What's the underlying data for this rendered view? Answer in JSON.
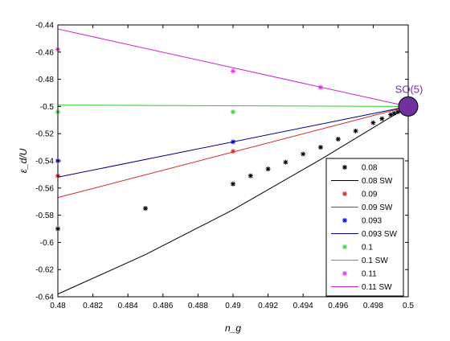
{
  "chart_data": {
    "type": "scatter",
    "title": "",
    "xlabel": "n_g",
    "ylabel": "ε_d/U",
    "xlim": [
      0.48,
      0.5
    ],
    "ylim": [
      -0.64,
      -0.44
    ],
    "xticks": [
      0.48,
      0.482,
      0.484,
      0.486,
      0.488,
      0.49,
      0.492,
      0.494,
      0.496,
      0.498,
      0.5
    ],
    "xtick_labels": [
      "0.48",
      "0.482",
      "0.484",
      "0.486",
      "0.488",
      "0.49",
      "0.492",
      "0.494",
      "0.496",
      "0.498",
      "0.5"
    ],
    "yticks": [
      -0.64,
      -0.62,
      -0.6,
      -0.58,
      -0.56,
      -0.54,
      -0.52,
      -0.5,
      -0.48,
      -0.46,
      -0.44
    ],
    "ytick_labels": [
      "-0.64",
      "-0.62",
      "-0.6",
      "-0.58",
      "-0.56",
      "-0.54",
      "-0.52",
      "-0.5",
      "-0.48",
      "-0.46",
      "-0.44"
    ],
    "grid": false,
    "legend_position": "bottom-right",
    "annotation": {
      "text": "SO(5)",
      "x": 0.5,
      "y": -0.5,
      "marker_color": "#7030a0"
    },
    "series": [
      {
        "name": "0.08",
        "kind": "markers",
        "marker": "*",
        "color": "#000000",
        "x": [
          0.48,
          0.485,
          0.49,
          0.491,
          0.492,
          0.493,
          0.494,
          0.495,
          0.496,
          0.497,
          0.498,
          0.4985,
          0.499,
          0.4992,
          0.4994,
          0.4996,
          0.4998,
          0.5
        ],
        "y": [
          -0.59,
          -0.575,
          -0.557,
          -0.551,
          -0.546,
          -0.541,
          -0.535,
          -0.53,
          -0.524,
          -0.518,
          -0.512,
          -0.509,
          -0.506,
          -0.505,
          -0.504,
          -0.503,
          -0.502,
          -0.5
        ]
      },
      {
        "name": "0.08 SW",
        "kind": "line",
        "color": "#000000",
        "x": [
          0.48,
          0.485,
          0.49,
          0.495,
          0.5
        ],
        "y": [
          -0.638,
          -0.609,
          -0.576,
          -0.539,
          -0.5
        ]
      },
      {
        "name": "0.09",
        "kind": "markers",
        "marker": "*",
        "color": "#d62728",
        "x": [
          0.48,
          0.49
        ],
        "y": [
          -0.551,
          -0.533
        ]
      },
      {
        "name": "0.09 SW",
        "kind": "line",
        "color": "#d62728",
        "x": [
          0.48,
          0.5
        ],
        "y": [
          -0.567,
          -0.5
        ]
      },
      {
        "name": "0.093",
        "kind": "markers",
        "marker": "*",
        "color": "#0000ff",
        "x": [
          0.48,
          0.49
        ],
        "y": [
          -0.54,
          -0.526
        ]
      },
      {
        "name": "0.093 SW",
        "kind": "line",
        "color": "#00008b",
        "x": [
          0.48,
          0.5
        ],
        "y": [
          -0.552,
          -0.5
        ]
      },
      {
        "name": "0.1",
        "kind": "markers",
        "marker": "*",
        "color": "#33dd33",
        "x": [
          0.48,
          0.49
        ],
        "y": [
          -0.504,
          -0.504
        ]
      },
      {
        "name": "0.1 SW",
        "kind": "line",
        "color": "#22cc22",
        "x": [
          0.48,
          0.5
        ],
        "y": [
          -0.499,
          -0.5
        ]
      },
      {
        "name": "0.11",
        "kind": "markers",
        "marker": "*",
        "color": "#ee33ee",
        "x": [
          0.48,
          0.49,
          0.495
        ],
        "y": [
          -0.458,
          -0.474,
          -0.486
        ]
      },
      {
        "name": "0.11 SW",
        "kind": "line",
        "color": "#cc22cc",
        "x": [
          0.48,
          0.5
        ],
        "y": [
          -0.443,
          -0.5
        ]
      }
    ]
  }
}
